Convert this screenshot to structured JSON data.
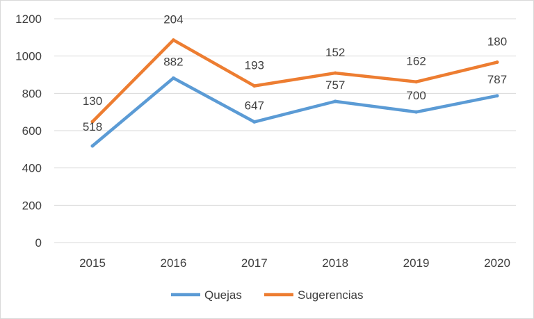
{
  "chart_data": {
    "type": "line",
    "title": "",
    "xlabel": "",
    "ylabel": "",
    "categories": [
      "2015",
      "2016",
      "2017",
      "2018",
      "2019",
      "2020"
    ],
    "ylim": [
      0,
      1200
    ],
    "yticks": [
      0,
      200,
      400,
      600,
      800,
      1000,
      1200
    ],
    "grid": true,
    "legend_position": "bottom",
    "series": [
      {
        "name": "Quejas",
        "color": "#5b9bd5",
        "values": [
          518,
          882,
          647,
          757,
          700,
          787
        ],
        "labels": [
          "518",
          "882",
          "647",
          "757",
          "700",
          "787"
        ]
      },
      {
        "name": "Sugerencias",
        "color": "#ed7d31",
        "values": [
          130,
          204,
          193,
          152,
          162,
          180
        ],
        "labels": [
          "130",
          "204",
          "193",
          "152",
          "162",
          "180"
        ],
        "stacked_on": "Quejas"
      }
    ]
  }
}
